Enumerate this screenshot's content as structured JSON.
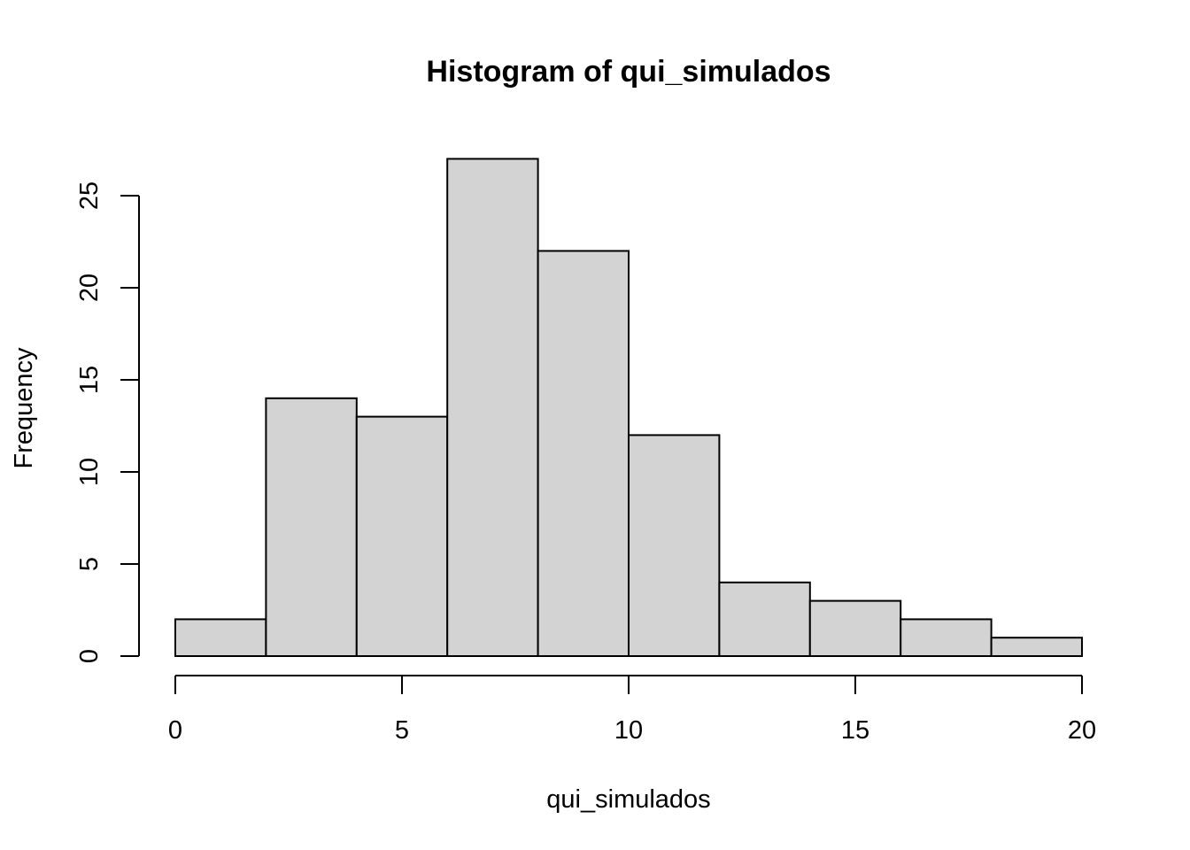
{
  "chart_data": {
    "type": "bar",
    "title": "Histogram of qui_simulados",
    "xlabel": "qui_simulados",
    "ylabel": "Frequency",
    "bins": [
      {
        "start": 0,
        "end": 2,
        "count": 2
      },
      {
        "start": 2,
        "end": 4,
        "count": 14
      },
      {
        "start": 4,
        "end": 6,
        "count": 13
      },
      {
        "start": 6,
        "end": 8,
        "count": 27
      },
      {
        "start": 8,
        "end": 10,
        "count": 22
      },
      {
        "start": 10,
        "end": 12,
        "count": 12
      },
      {
        "start": 12,
        "end": 14,
        "count": 4
      },
      {
        "start": 14,
        "end": 16,
        "count": 3
      },
      {
        "start": 16,
        "end": 18,
        "count": 2
      },
      {
        "start": 18,
        "end": 20,
        "count": 1
      }
    ],
    "xlim": [
      0,
      20
    ],
    "ylim": [
      0,
      27
    ],
    "x_ticks": [
      0,
      5,
      10,
      15,
      20
    ],
    "x_tick_labels": [
      "0",
      "5",
      "10",
      "15",
      "20"
    ],
    "y_ticks": [
      0,
      5,
      10,
      15,
      20,
      25
    ],
    "y_tick_labels": [
      "0",
      "5",
      "10",
      "15",
      "20",
      "25"
    ],
    "bar_fill": "#d3d3d3",
    "bar_stroke": "#000000",
    "grid": false
  }
}
